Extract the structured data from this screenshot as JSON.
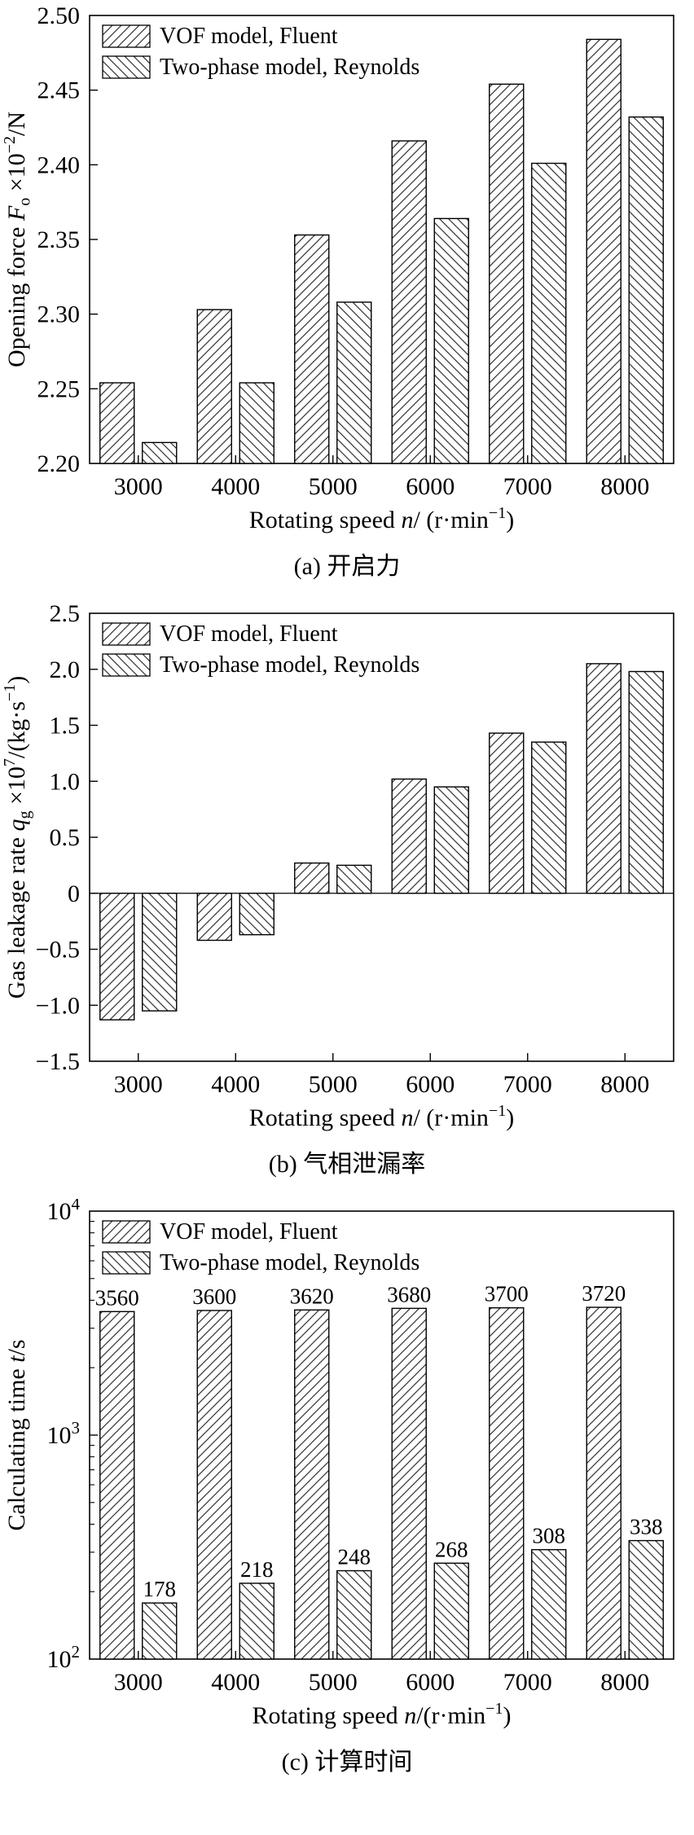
{
  "chart_data": [
    {
      "key": "a",
      "type": "bar",
      "caption": "(a) 开启力",
      "title": "",
      "scale": "linear",
      "grid": false,
      "legend_position": "top-left",
      "ylim": [
        2.2,
        2.5
      ],
      "ylabel": "Opening force Fo ×10−2/N",
      "xlabel": "Rotating speed n/ (r·min−1)",
      "ylabel_rich": [
        {
          "t": "Opening force "
        },
        {
          "t": "F",
          "i": true
        },
        {
          "t": "o",
          "v": "sub"
        },
        {
          "t": " ×10"
        },
        {
          "t": "−2",
          "v": "sup"
        },
        {
          "t": "/N"
        }
      ],
      "xlabel_rich": [
        {
          "t": "Rotating speed "
        },
        {
          "t": "n",
          "i": true
        },
        {
          "t": "/ (r·min"
        },
        {
          "t": "−1",
          "v": "sup"
        },
        {
          "t": ")"
        }
      ],
      "yticks": [
        {
          "v": 2.2,
          "label": "2.20"
        },
        {
          "v": 2.25,
          "label": "2.25"
        },
        {
          "v": 2.3,
          "label": "2.30"
        },
        {
          "v": 2.35,
          "label": "2.35"
        },
        {
          "v": 2.4,
          "label": "2.40"
        },
        {
          "v": 2.45,
          "label": "2.45"
        },
        {
          "v": 2.5,
          "label": "2.50"
        }
      ],
      "categories": [
        "3000",
        "4000",
        "5000",
        "6000",
        "7000",
        "8000"
      ],
      "series": [
        {
          "name": "VOF model, Fluent",
          "hatch": "fwd",
          "values": [
            2.254,
            2.303,
            2.353,
            2.416,
            2.454,
            2.484
          ]
        },
        {
          "name": "Two-phase model, Reynolds",
          "hatch": "bwd",
          "values": [
            2.214,
            2.254,
            2.308,
            2.364,
            2.401,
            2.432
          ]
        }
      ]
    },
    {
      "key": "b",
      "type": "bar",
      "caption": "(b) 气相泄漏率",
      "title": "",
      "scale": "linear",
      "grid": false,
      "legend_position": "top-left",
      "zero_line": true,
      "baseline": 0,
      "ylim": [
        -1.5,
        2.5
      ],
      "ylabel": "Gas leakage rate qg ×107/(kg·s−1)",
      "xlabel": "Rotating speed n/ (r·min−1)",
      "ylabel_rich": [
        {
          "t": "Gas leakage rate "
        },
        {
          "t": "q",
          "i": true
        },
        {
          "t": "g",
          "v": "sub"
        },
        {
          "t": " ×10"
        },
        {
          "t": "7",
          "v": "sup"
        },
        {
          "t": "/(kg·s"
        },
        {
          "t": "−1",
          "v": "sup"
        },
        {
          "t": ")"
        }
      ],
      "xlabel_rich": [
        {
          "t": "Rotating speed "
        },
        {
          "t": "n",
          "i": true
        },
        {
          "t": "/ (r·min"
        },
        {
          "t": "−1",
          "v": "sup"
        },
        {
          "t": ")"
        }
      ],
      "yticks": [
        {
          "v": -1.5,
          "label": "−1.5"
        },
        {
          "v": -1.0,
          "label": "−1.0"
        },
        {
          "v": -0.5,
          "label": "−0.5"
        },
        {
          "v": 0,
          "label": "0"
        },
        {
          "v": 0.5,
          "label": "0.5"
        },
        {
          "v": 1.0,
          "label": "1.0"
        },
        {
          "v": 1.5,
          "label": "1.5"
        },
        {
          "v": 2.0,
          "label": "2.0"
        },
        {
          "v": 2.5,
          "label": "2.5"
        }
      ],
      "categories": [
        "3000",
        "4000",
        "5000",
        "6000",
        "7000",
        "8000"
      ],
      "series": [
        {
          "name": "VOF model, Fluent",
          "hatch": "fwd",
          "values": [
            -1.13,
            -0.42,
            0.27,
            1.02,
            1.43,
            2.05
          ]
        },
        {
          "name": "Two-phase model, Reynolds",
          "hatch": "bwd",
          "values": [
            -1.05,
            -0.37,
            0.25,
            0.95,
            1.35,
            1.98
          ]
        }
      ]
    },
    {
      "key": "c",
      "type": "bar",
      "caption": "(c) 计算时间",
      "title": "",
      "scale": "log",
      "grid": false,
      "legend_position": "top-left",
      "ylim": [
        100,
        10000
      ],
      "ylabel": "Calculating time t/s",
      "xlabel": "Rotating speed n/(r·min−1)",
      "ylabel_rich": [
        {
          "t": "Calculating time "
        },
        {
          "t": "t",
          "i": true
        },
        {
          "t": "/s"
        }
      ],
      "xlabel_rich": [
        {
          "t": "Rotating speed "
        },
        {
          "t": "n",
          "i": true
        },
        {
          "t": "/(r·min"
        },
        {
          "t": "−1",
          "v": "sup"
        },
        {
          "t": ")"
        }
      ],
      "yticks": [
        {
          "v": 100,
          "exp": "2"
        },
        {
          "v": 1000,
          "exp": "3"
        },
        {
          "v": 10000,
          "exp": "4"
        }
      ],
      "categories": [
        "3000",
        "4000",
        "5000",
        "6000",
        "7000",
        "8000"
      ],
      "series": [
        {
          "name": "VOF model, Fluent",
          "hatch": "fwd",
          "values": [
            3560,
            3600,
            3620,
            3680,
            3700,
            3720
          ],
          "value_labels": [
            "3560",
            "3600",
            "3620",
            "3680",
            "3700",
            "3720"
          ]
        },
        {
          "name": "Two-phase model, Reynolds",
          "hatch": "bwd",
          "values": [
            178,
            218,
            248,
            268,
            308,
            338
          ],
          "value_labels": [
            "178",
            "218",
            "248",
            "268",
            "308",
            "338"
          ]
        }
      ]
    }
  ]
}
